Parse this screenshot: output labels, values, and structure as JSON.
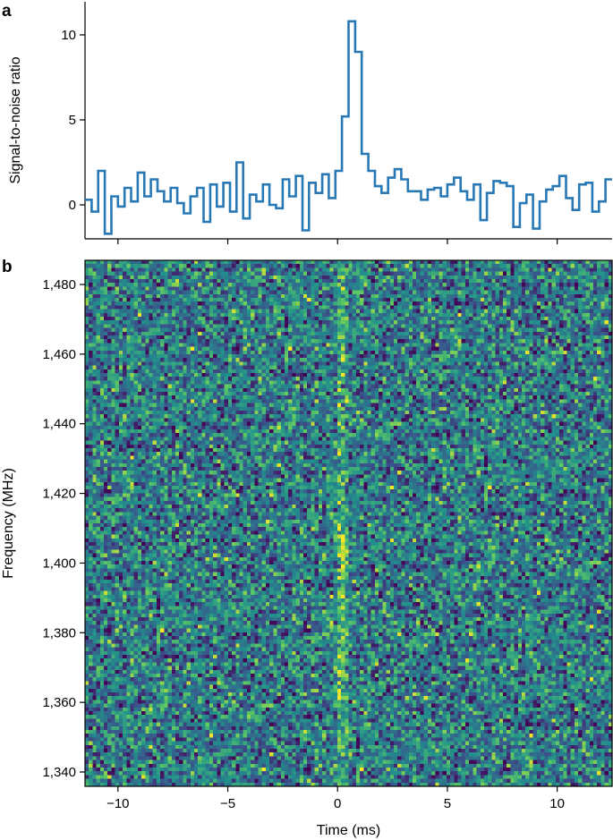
{
  "chart_data": [
    {
      "panel": "a",
      "type": "line",
      "style": "step",
      "xlabel": "",
      "ylabel": "Signal-to-noise ratio",
      "xlim": [
        -11.5,
        12.5
      ],
      "ylim": [
        -2,
        12
      ],
      "xticks": [
        -10,
        -5,
        0,
        5,
        10
      ],
      "yticks": [
        {
          "value": 0,
          "label": "0"
        },
        {
          "value": 5,
          "label": "5"
        },
        {
          "value": 10,
          "label": "10"
        }
      ],
      "series_color": "#2878b5",
      "series": [
        {
          "x": [
            -11.5,
            -11.2,
            -10.9,
            -10.6,
            -10.3,
            -10.0,
            -9.7,
            -9.4,
            -9.1,
            -8.8,
            -8.5,
            -8.2,
            -7.9,
            -7.6,
            -7.3,
            -7.0,
            -6.7,
            -6.4,
            -6.1,
            -5.8,
            -5.5,
            -5.2,
            -4.9,
            -4.6,
            -4.3,
            -4.0,
            -3.7,
            -3.4,
            -3.1,
            -2.8,
            -2.5,
            -2.2,
            -1.9,
            -1.6,
            -1.3,
            -1.0,
            -0.7,
            -0.4,
            -0.1,
            0.2,
            0.5,
            0.8,
            1.1,
            1.4,
            1.7,
            2.0,
            2.3,
            2.6,
            2.9,
            3.2,
            3.5,
            3.8,
            4.1,
            4.4,
            4.7,
            5.0,
            5.3,
            5.6,
            5.9,
            6.2,
            6.5,
            6.8,
            7.1,
            7.4,
            7.7,
            8.0,
            8.3,
            8.6,
            8.9,
            9.2,
            9.5,
            9.8,
            10.1,
            10.4,
            10.7,
            11.0,
            11.3,
            11.6,
            11.9,
            12.2
          ],
          "values": [
            0.3,
            -0.4,
            2.0,
            -1.7,
            0.5,
            -0.1,
            1.0,
            0.2,
            1.9,
            0.5,
            1.5,
            0.8,
            0.2,
            1.0,
            0.1,
            -0.5,
            0.5,
            1.0,
            -1.0,
            1.2,
            -0.1,
            1.3,
            -0.4,
            2.5,
            -0.8,
            0.6,
            0.2,
            1.2,
            0.0,
            -0.2,
            1.5,
            0.5,
            1.7,
            -1.5,
            1.3,
            0.7,
            1.8,
            0.4,
            2.0,
            5.2,
            10.8,
            9.0,
            3.0,
            2.0,
            1.1,
            0.7,
            1.6,
            2.1,
            1.5,
            0.8,
            0.8,
            0.3,
            0.9,
            1.0,
            0.5,
            1.2,
            1.6,
            0.8,
            0.3,
            1.2,
            -0.9,
            0.7,
            1.4,
            1.3,
            1.1,
            -1.3,
            0.1,
            0.6,
            -1.4,
            0.2,
            0.9,
            1.1,
            1.7,
            0.4,
            -0.3,
            1.2,
            1.3,
            -0.4,
            0.2,
            1.5
          ]
        }
      ]
    },
    {
      "panel": "b",
      "type": "heatmap",
      "xlabel": "Time (ms)",
      "ylabel": "Frequency (MHz)",
      "xlim": [
        -11.5,
        12.5
      ],
      "ylim": [
        1336,
        1486
      ],
      "xticks": [
        {
          "value": -10,
          "label": "−10"
        },
        {
          "value": -5,
          "label": "−5"
        },
        {
          "value": 0,
          "label": "0"
        },
        {
          "value": 5,
          "label": "5"
        },
        {
          "value": 10,
          "label": "10"
        }
      ],
      "yticks": [
        {
          "value": 1340,
          "label": "1,340"
        },
        {
          "value": 1360,
          "label": "1,360"
        },
        {
          "value": 1380,
          "label": "1,380"
        },
        {
          "value": 1400,
          "label": "1,400"
        },
        {
          "value": 1420,
          "label": "1,420"
        },
        {
          "value": 1440,
          "label": "1,440"
        },
        {
          "value": 1460,
          "label": "1,460"
        },
        {
          "value": 1480,
          "label": "1,480"
        }
      ],
      "colormap": "viridis",
      "colormap_colors": [
        "#440154",
        "#3b528b",
        "#21918c",
        "#5ec962",
        "#fde725"
      ],
      "grid": {
        "time_bins": 140,
        "frequency_bins": 140
      },
      "burst": {
        "center_time_ms": 0.2,
        "frequency_range_mhz": [
          1336,
          1486
        ],
        "strongest_range_mhz": [
          1360,
          1410
        ]
      }
    }
  ]
}
